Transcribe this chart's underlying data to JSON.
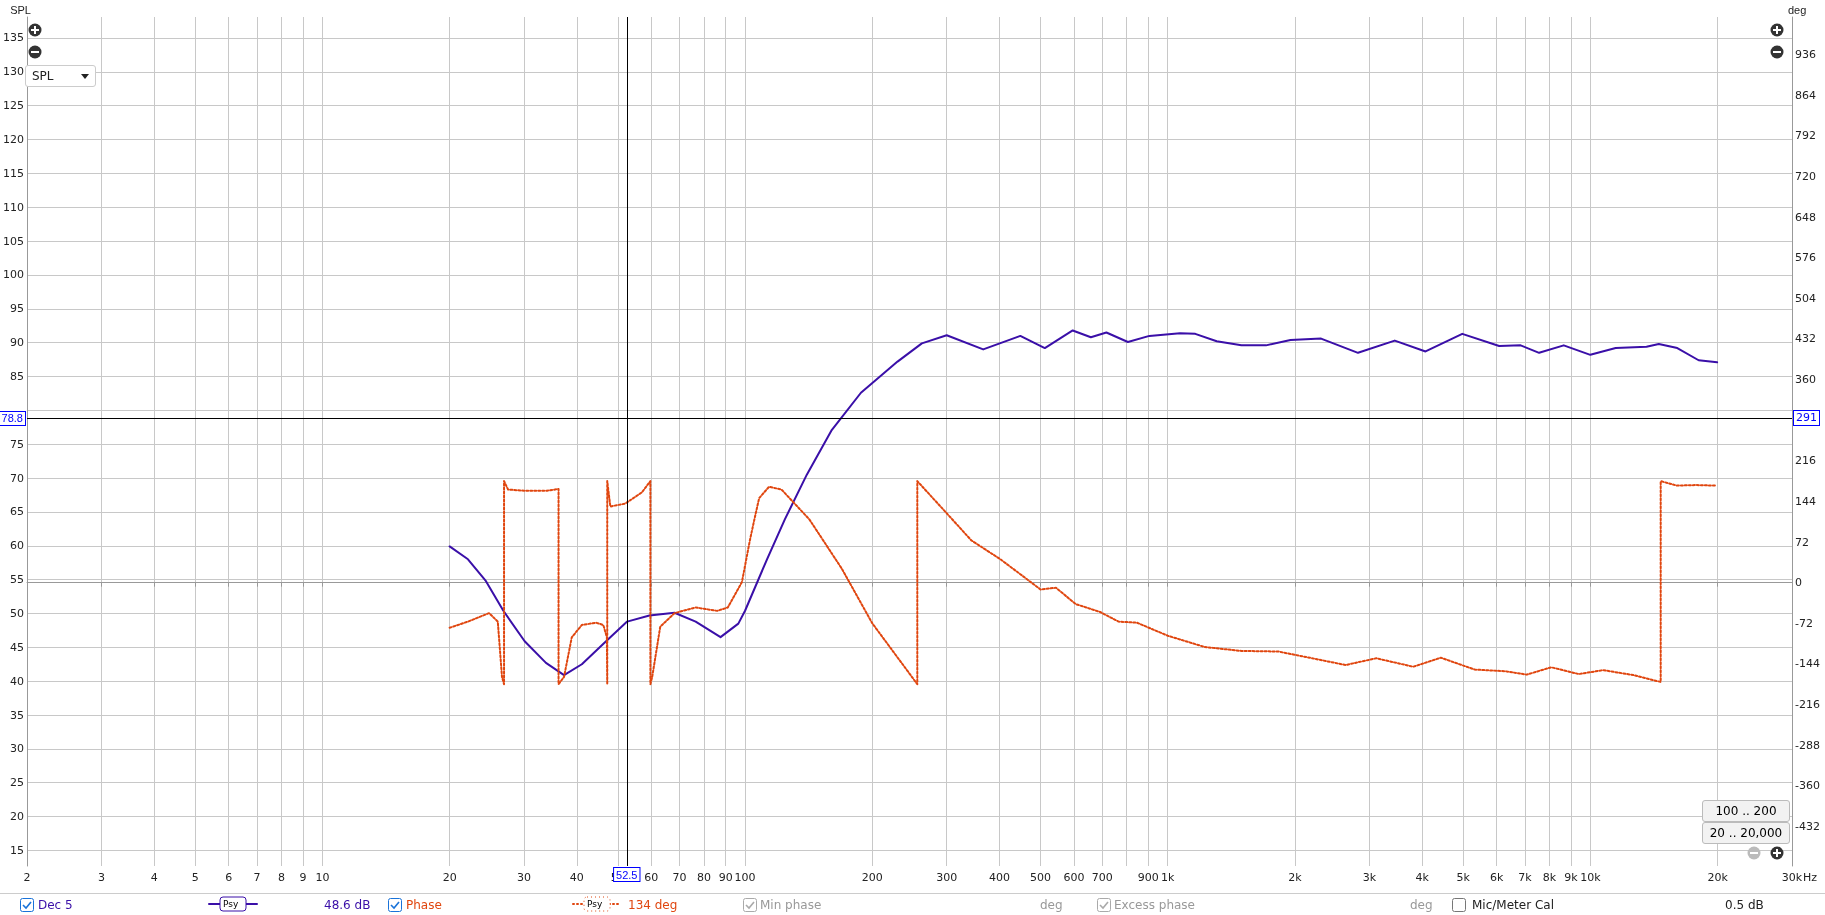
{
  "chart_data": {
    "type": "line",
    "ylabel": "SPL",
    "y2label": "deg",
    "xlim": [
      2,
      30000
    ],
    "log": "x",
    "xticks": [
      2,
      3,
      4,
      5,
      6,
      7,
      8,
      9,
      10,
      20,
      30,
      40,
      50,
      60,
      70,
      80,
      90,
      100,
      200,
      300,
      400,
      500,
      600,
      700,
      {
        "value": 800,
        "label": null
      },
      900,
      {
        "value": 1000,
        "label": "1k"
      },
      {
        "value": 2000,
        "label": "2k"
      },
      {
        "value": 3000,
        "label": "3k"
      },
      {
        "value": 4000,
        "label": "4k"
      },
      {
        "value": 5000,
        "label": "5k"
      },
      {
        "value": 6000,
        "label": "6k"
      },
      {
        "value": 7000,
        "label": "7k"
      },
      {
        "value": 8000,
        "label": "8k"
      },
      {
        "value": 9000,
        "label": "9k"
      },
      {
        "value": 10000,
        "label": "10k"
      },
      {
        "value": 20000,
        "label": "20k"
      },
      {
        "value": 30000,
        "label": "30k"
      }
    ],
    "xlabel": "Hz",
    "ylim": [
      12.7,
      138.1
    ],
    "yticks": [
      15,
      20,
      25,
      30,
      35,
      40,
      45,
      50,
      55,
      60,
      65,
      70,
      75,
      {
        "value": 80,
        "label": null
      },
      85,
      90,
      95,
      100,
      105,
      110,
      115,
      120,
      125,
      130,
      135
    ],
    "y2lim": [
      -502.2,
      1002.6
    ],
    "y2ticks": [
      -432,
      -360,
      -288,
      -216,
      -144,
      -72,
      0,
      72,
      144,
      216,
      360,
      432,
      504,
      576,
      648,
      720,
      792,
      864,
      936
    ],
    "grid": true,
    "legend": "bottom",
    "marker": "none",
    "series": [
      {
        "name": "Dec 5",
        "color": "#3a0fa8",
        "line_style": "solid",
        "axis": "y",
        "x": [
          20,
          22.1,
          24.3,
          26.8,
          30.1,
          33.8,
          37.3,
          41.1,
          47.1,
          52.6,
          59.4,
          68.1,
          76.4,
          87.5,
          96.4,
          100,
          112.7,
          124.2,
          140,
          160,
          188,
          229.5,
          262,
          300,
          366,
          448,
          512,
          596,
          658,
          716,
          805,
          905,
          1069,
          1162,
          1306,
          1494,
          1708,
          1952,
          2306,
          2820,
          3445,
          4074,
          4977,
          6085,
          6840,
          7565,
          8650,
          10000,
          11480,
          13580,
          14520,
          16060,
          18040,
          19950
        ],
        "values": [
          59.9,
          58.0,
          54.9,
          50.4,
          45.9,
          42.7,
          40.9,
          42.5,
          46.0,
          48.8,
          49.7,
          50.1,
          48.8,
          46.5,
          48.5,
          50.4,
          58.0,
          63.9,
          70.5,
          77.0,
          82.6,
          87.2,
          89.9,
          91.1,
          89.0,
          91.0,
          89.2,
          91.8,
          90.8,
          91.5,
          90.1,
          91.0,
          91.4,
          91.3,
          90.2,
          89.6,
          89.6,
          90.4,
          90.6,
          88.5,
          90.3,
          88.7,
          91.3,
          89.5,
          89.6,
          88.5,
          89.6,
          88.2,
          89.2,
          89.4,
          89.8,
          89.2,
          87.4,
          87.1
        ]
      },
      {
        "name": "Phase",
        "color": "#e0460f",
        "line_style": "dotted",
        "axis": "y2",
        "x": [
          20,
          22.1,
          24.8,
          26,
          26.6,
          26.9,
          26.9,
          27.5,
          30,
          34,
          36.2,
          36.2,
          37.3,
          38.9,
          41.1,
          44.4,
          46.2,
          47.1,
          47.2,
          47.2,
          48,
          52,
          57,
          59.7,
          59.7,
          60.3,
          63,
          68.1,
          76.4,
          85.9,
          91,
          98.3,
          102.6,
          105.2,
          108,
          114,
          122,
          142,
          169,
          200,
          255.6,
          255.6,
          300,
          343,
          401,
          448,
          500,
          544,
          606,
          692,
          765,
          846,
          1000,
          1222,
          1494,
          1825,
          2230,
          2636,
          3115,
          3809,
          4429,
          5325,
          6290,
          7072,
          8083,
          9390,
          10730,
          12670,
          14670,
          14670,
          16020,
          17720,
          19910
        ],
        "values": [
          -80,
          -69,
          -54,
          -69,
          -167,
          -180,
          180,
          165,
          163,
          163,
          166,
          -180,
          -167,
          -97,
          -75,
          -71,
          -75,
          -97,
          -180,
          180,
          135,
          140,
          160,
          180,
          -180,
          -167,
          -78,
          -54,
          -44,
          -50,
          -44,
          1,
          74,
          112,
          150,
          170,
          165,
          112,
          26,
          -72,
          -180,
          180,
          123,
          75,
          42,
          15,
          -12,
          -9,
          -38,
          -52,
          -69,
          -71,
          -94,
          -114,
          -121,
          -122,
          -135,
          -146,
          -134,
          -149,
          -133,
          -154,
          -157,
          -163,
          -150,
          -162,
          -155,
          -164,
          -176,
          180,
          172,
          173,
          172
        ]
      }
    ],
    "ref_lines": [
      {
        "axis": "x",
        "value": 52.5,
        "label": "52.5",
        "color": "#000000"
      },
      {
        "axis": "y",
        "value": 78.8,
        "label": "78.8",
        "color": "#000000"
      }
    ],
    "annotations": [
      "SPL",
      "100 .. 200",
      "20 .. 20,000",
      "Psy",
      "48.6 dB",
      "Psy",
      "134 deg",
      "Min phase",
      "deg",
      "Excess phase",
      "deg",
      "Mic/Meter Cal",
      "0.5 dB",
      "291"
    ]
  }
}
